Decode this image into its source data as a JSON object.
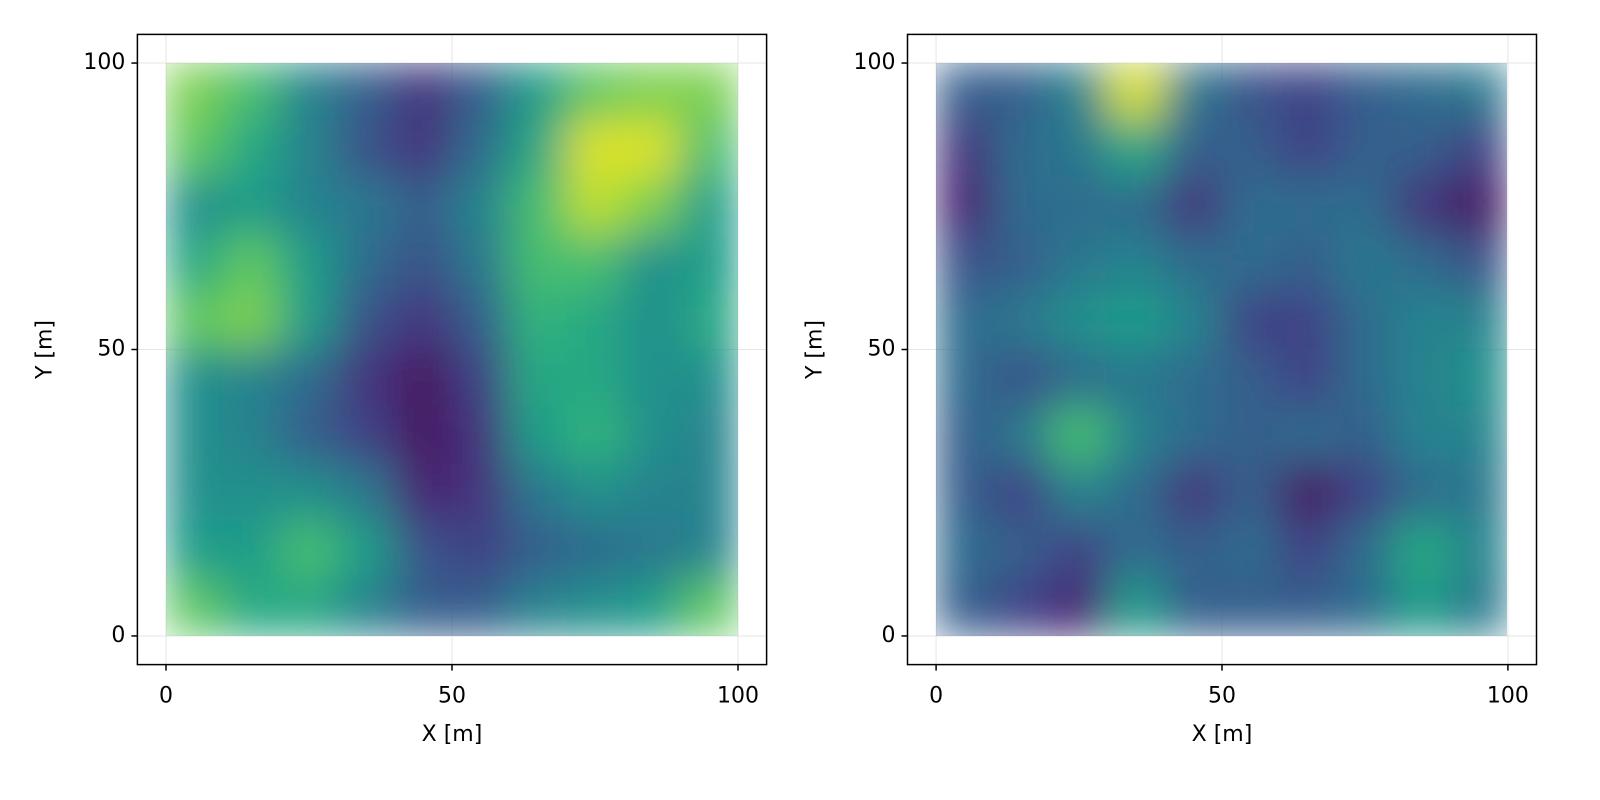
{
  "chart_data": [
    {
      "type": "heatmap",
      "xlabel": "X [m]",
      "ylabel": "Y [m]",
      "colormap": "viridis",
      "grid": true,
      "xlim": [
        -5,
        105
      ],
      "ylim": [
        -5,
        105
      ],
      "xticks": [
        0,
        50,
        100
      ],
      "yticks": [
        0,
        50,
        100
      ],
      "x": [
        5,
        15,
        25,
        35,
        45,
        55,
        65,
        75,
        85,
        95
      ],
      "y": [
        95,
        85,
        75,
        65,
        55,
        45,
        35,
        25,
        15,
        5
      ],
      "values": [
        [
          0.8,
          0.7,
          0.45,
          0.3,
          0.15,
          0.3,
          0.55,
          0.75,
          0.8,
          0.8
        ],
        [
          0.75,
          0.6,
          0.45,
          0.25,
          0.15,
          0.35,
          0.6,
          0.95,
          0.95,
          0.7
        ],
        [
          0.5,
          0.55,
          0.45,
          0.4,
          0.3,
          0.45,
          0.7,
          0.9,
          0.8,
          0.55
        ],
        [
          0.6,
          0.75,
          0.55,
          0.35,
          0.25,
          0.4,
          0.7,
          0.7,
          0.5,
          0.55
        ],
        [
          0.75,
          0.8,
          0.55,
          0.25,
          0.15,
          0.3,
          0.65,
          0.6,
          0.5,
          0.6
        ],
        [
          0.5,
          0.45,
          0.35,
          0.15,
          0.05,
          0.2,
          0.6,
          0.6,
          0.5,
          0.5
        ],
        [
          0.5,
          0.45,
          0.3,
          0.2,
          0.05,
          0.15,
          0.55,
          0.65,
          0.5,
          0.45
        ],
        [
          0.5,
          0.5,
          0.5,
          0.4,
          0.1,
          0.15,
          0.4,
          0.5,
          0.45,
          0.45
        ],
        [
          0.55,
          0.55,
          0.7,
          0.55,
          0.25,
          0.2,
          0.3,
          0.35,
          0.4,
          0.45
        ],
        [
          0.75,
          0.6,
          0.6,
          0.45,
          0.3,
          0.3,
          0.45,
          0.5,
          0.55,
          0.75
        ]
      ]
    },
    {
      "type": "heatmap",
      "xlabel": "X [m]",
      "ylabel": "Y [m]",
      "colormap": "viridis",
      "grid": true,
      "xlim": [
        -5,
        105
      ],
      "ylim": [
        -5,
        105
      ],
      "xticks": [
        0,
        50,
        100
      ],
      "yticks": [
        0,
        50,
        100
      ],
      "x": [
        5,
        15,
        25,
        35,
        45,
        55,
        65,
        75,
        85,
        95
      ],
      "y": [
        95,
        85,
        75,
        65,
        55,
        45,
        35,
        25,
        15,
        5
      ],
      "values": [
        [
          0.3,
          0.3,
          0.45,
          0.95,
          0.4,
          0.25,
          0.2,
          0.3,
          0.35,
          0.4
        ],
        [
          0.15,
          0.35,
          0.4,
          0.6,
          0.3,
          0.3,
          0.2,
          0.3,
          0.3,
          0.2
        ],
        [
          0.1,
          0.35,
          0.35,
          0.35,
          0.15,
          0.35,
          0.35,
          0.35,
          0.15,
          0.05
        ],
        [
          0.25,
          0.3,
          0.4,
          0.45,
          0.35,
          0.35,
          0.3,
          0.4,
          0.35,
          0.25
        ],
        [
          0.35,
          0.4,
          0.5,
          0.55,
          0.45,
          0.2,
          0.2,
          0.35,
          0.45,
          0.45
        ],
        [
          0.35,
          0.25,
          0.35,
          0.4,
          0.35,
          0.3,
          0.2,
          0.35,
          0.45,
          0.5
        ],
        [
          0.3,
          0.4,
          0.7,
          0.45,
          0.35,
          0.3,
          0.35,
          0.3,
          0.45,
          0.45
        ],
        [
          0.3,
          0.2,
          0.45,
          0.35,
          0.15,
          0.3,
          0.05,
          0.2,
          0.35,
          0.4
        ],
        [
          0.35,
          0.3,
          0.2,
          0.35,
          0.3,
          0.35,
          0.2,
          0.35,
          0.6,
          0.45
        ],
        [
          0.3,
          0.2,
          0.1,
          0.55,
          0.3,
          0.3,
          0.3,
          0.35,
          0.55,
          0.4
        ]
      ]
    }
  ]
}
